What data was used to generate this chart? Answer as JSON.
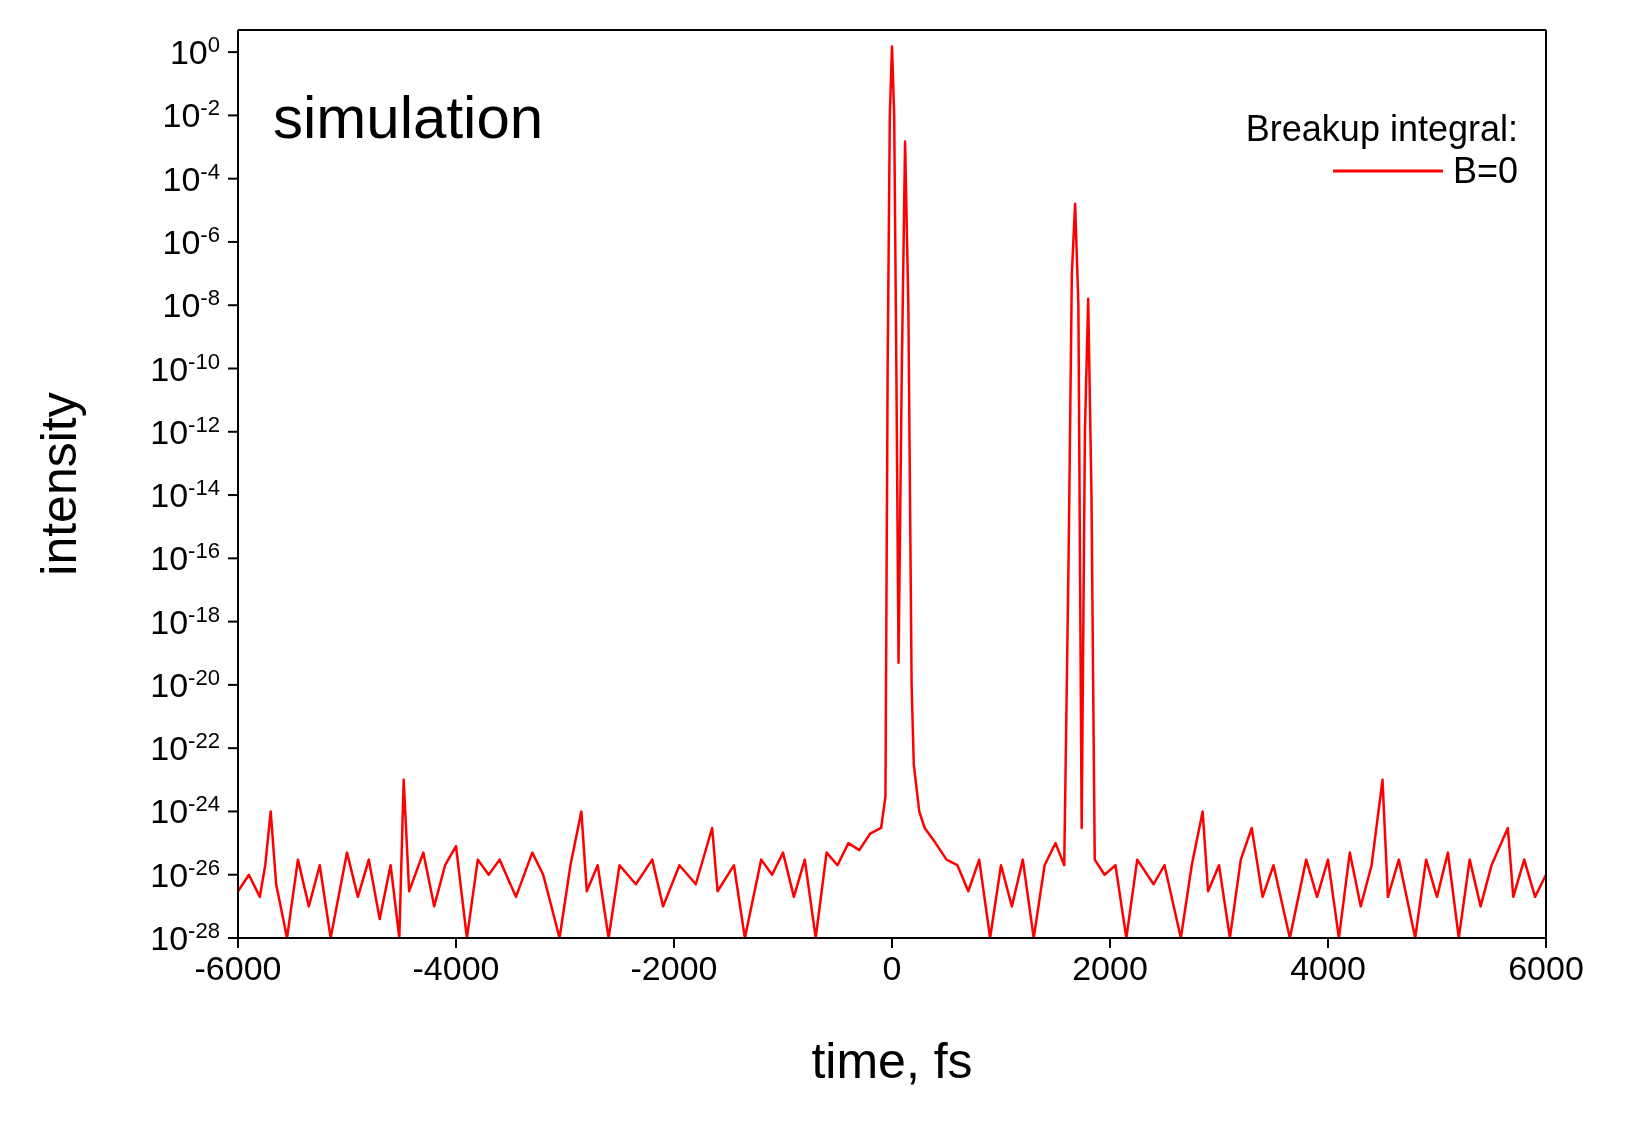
{
  "chart_data": {
    "type": "line",
    "xlabel": "time, fs",
    "ylabel": "intensity",
    "annotations": [
      "simulation"
    ],
    "legend_title": "Breakup integral:",
    "legend": "top right",
    "log": "y",
    "xlim": [
      -6000,
      6000
    ],
    "xticks": [
      -6000,
      -4000,
      -2000,
      0,
      2000,
      4000,
      6000
    ],
    "ylim": [
      1e-28,
      5
    ],
    "yticks": [
      {
        "value": 1e-28,
        "label": "10$^{-28}$"
      },
      {
        "value": 1e-26,
        "label": "10$^{-26}$"
      },
      {
        "value": 1e-24,
        "label": "10$^{-24}$"
      },
      {
        "value": 1e-22,
        "label": "10$^{-22}$"
      },
      {
        "value": 1e-20,
        "label": "10$^{-20}$"
      },
      {
        "value": 1e-18,
        "label": "10$^{-18}$"
      },
      {
        "value": 1e-16,
        "label": "10$^{-16}$"
      },
      {
        "value": 1e-14,
        "label": "10$^{-14}$"
      },
      {
        "value": 1e-12,
        "label": "10$^{-12}$"
      },
      {
        "value": 1e-10,
        "label": "10$^{-10}$"
      },
      {
        "value": 1e-08,
        "label": "10$^{-8}$"
      },
      {
        "value": 1e-06,
        "label": "10$^{-6}$"
      },
      {
        "value": 0.0001,
        "label": "10$^{-4}$"
      },
      {
        "value": 0.01,
        "label": "10$^{-2}$"
      },
      {
        "value": 1,
        "label": "10$^{0}$"
      }
    ],
    "x": [
      -6000,
      -5900,
      -5800,
      -5750,
      -5700,
      -5650,
      -5550,
      -5450,
      -5350,
      -5250,
      -5150,
      -5000,
      -4900,
      -4800,
      -4700,
      -4600,
      -4520,
      -4480,
      -4430,
      -4300,
      -4200,
      -4100,
      -4000,
      -3900,
      -3800,
      -3700,
      -3600,
      -3450,
      -3300,
      -3200,
      -3050,
      -2950,
      -2850,
      -2800,
      -2700,
      -2600,
      -2500,
      -2350,
      -2200,
      -2100,
      -1950,
      -1800,
      -1650,
      -1600,
      -1450,
      -1350,
      -1200,
      -1100,
      -1000,
      -900,
      -800,
      -700,
      -600,
      -500,
      -400,
      -300,
      -200,
      -100,
      -60,
      -40,
      -20,
      0,
      20,
      40,
      60,
      90,
      120,
      150,
      180,
      200,
      250,
      300,
      400,
      500,
      600,
      700,
      800,
      900,
      1000,
      1100,
      1200,
      1300,
      1400,
      1500,
      1580,
      1620,
      1650,
      1680,
      1710,
      1740,
      1770,
      1800,
      1830,
      1860,
      1950,
      2050,
      2150,
      2250,
      2400,
      2500,
      2650,
      2750,
      2850,
      2900,
      3000,
      3100,
      3200,
      3300,
      3400,
      3500,
      3650,
      3800,
      3900,
      4000,
      4100,
      4200,
      4300,
      4400,
      4500,
      4550,
      4650,
      4800,
      4900,
      5000,
      5100,
      5200,
      5300,
      5400,
      5500,
      5650,
      5700,
      5800,
      5900,
      6000
    ],
    "series": [
      {
        "name": "B=0",
        "color": "#ff0000",
        "values": [
          3e-27,
          1e-26,
          2e-27,
          2e-26,
          1e-24,
          5e-27,
          1e-28,
          3e-26,
          1e-27,
          2e-26,
          1e-28,
          5e-26,
          2e-27,
          3e-26,
          4e-28,
          2e-26,
          1e-28,
          1e-23,
          3e-27,
          5e-26,
          1e-27,
          2e-26,
          8e-26,
          1e-28,
          3e-26,
          1e-26,
          3e-26,
          2e-27,
          5e-26,
          1e-26,
          1e-28,
          2e-26,
          1e-24,
          3e-27,
          2e-26,
          1e-28,
          2e-26,
          5e-27,
          3e-26,
          1e-27,
          2e-26,
          5e-27,
          3e-25,
          3e-27,
          2e-26,
          1e-28,
          3e-26,
          1e-26,
          5e-26,
          2e-27,
          3e-26,
          1e-28,
          5e-26,
          2e-26,
          1e-25,
          6e-26,
          2e-25,
          3e-25,
          3e-24,
          1e-10,
          0.01,
          1.5,
          0.01,
          1e-10,
          5e-20,
          1e-10,
          0.0015,
          1e-08,
          1e-20,
          3e-23,
          1e-24,
          3e-25,
          1e-25,
          3e-26,
          2e-26,
          3e-27,
          3e-26,
          1e-28,
          2e-26,
          1e-27,
          3e-26,
          1e-28,
          2e-26,
          1e-25,
          2e-26,
          1e-16,
          1e-07,
          1.6e-05,
          1e-08,
          3e-25,
          1e-12,
          1.6e-08,
          1e-14,
          3e-26,
          1e-26,
          2e-26,
          1e-28,
          3e-26,
          5e-27,
          2e-26,
          1e-28,
          2e-26,
          1e-24,
          3e-27,
          2e-26,
          1e-28,
          3e-26,
          3e-25,
          2e-27,
          2e-26,
          1e-28,
          3e-26,
          2e-27,
          3e-26,
          1e-28,
          5e-26,
          1e-27,
          2e-26,
          1e-23,
          2e-27,
          3e-26,
          1e-28,
          3e-26,
          2e-27,
          5e-26,
          1e-28,
          3e-26,
          1e-27,
          2e-26,
          3e-25,
          2e-27,
          3e-26,
          2e-27,
          1e-26
        ]
      }
    ]
  }
}
